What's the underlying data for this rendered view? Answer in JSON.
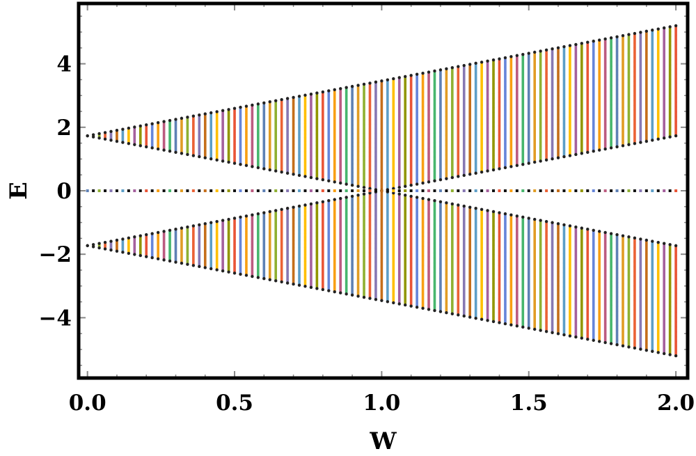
{
  "chart_data": {
    "type": "scatter",
    "title": "",
    "xlabel": "W",
    "ylabel": "E",
    "xlim": [
      -0.03,
      2.04
    ],
    "ylim": [
      -5.9,
      5.9
    ],
    "xticks": [
      "0.0",
      "0.5",
      "1.0",
      "1.5",
      "2.0"
    ],
    "yticks": [
      "4",
      "2",
      "0",
      "-2",
      "-4"
    ],
    "grid": false,
    "legend": "none",
    "band_model": {
      "description_free": true,
      "w_range": [
        0.0,
        2.0
      ],
      "w_step": 0.02,
      "levels_per_band": 24,
      "upper_band": {
        "at_w0": [
          1.73,
          1.73
        ],
        "at_w1": [
          0.0,
          3.46
        ],
        "at_w2": [
          1.73,
          5.2
        ]
      },
      "lower_band": {
        "at_w0": [
          -1.73,
          -1.73
        ],
        "at_w1": [
          -3.46,
          0.0
        ],
        "at_w2": [
          -5.2,
          -1.73
        ]
      },
      "flat_band": 0.0
    },
    "series_colors": [
      "#5e81b5",
      "#e19c24",
      "#8fb032",
      "#eb6235",
      "#8778b3",
      "#c56e1a",
      "#5d9ec7",
      "#ffbf00",
      "#a5609d",
      "#929600",
      "#e95536",
      "#6685d9",
      "#f89f13",
      "#bc5b80",
      "#47b66d"
    ]
  }
}
